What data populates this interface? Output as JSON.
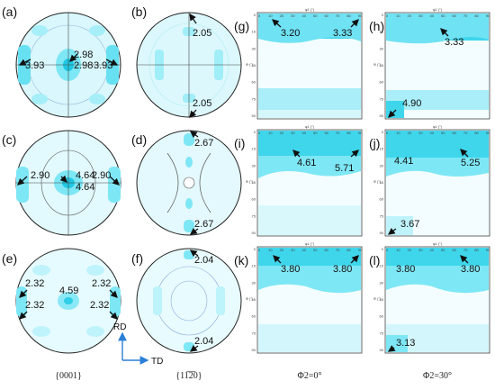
{
  "pole_figures": [
    {
      "label": "(a)",
      "values": [
        "3.93",
        "2.98",
        "2.98",
        "3.93"
      ]
    },
    {
      "label": "(b)",
      "values": [
        "2.05",
        "2.05"
      ]
    },
    {
      "label": "(c)",
      "values": [
        "2.90",
        "4.64",
        "4.64",
        "2.90"
      ]
    },
    {
      "label": "(d)",
      "values": [
        "2.67",
        "2.67"
      ]
    },
    {
      "label": "(e)",
      "values": [
        "2.32",
        "4.59",
        "2.32",
        "2.32",
        "2.32"
      ]
    },
    {
      "label": "(f)",
      "values": [
        "2.04",
        "2.04"
      ]
    }
  ],
  "odf_sections": [
    {
      "label": "(g)",
      "values": [
        "3.20",
        "3.33"
      ]
    },
    {
      "label": "(h)",
      "values": [
        "3.33",
        "4.90"
      ]
    },
    {
      "label": "(i)",
      "values": [
        "4.61",
        "5.71"
      ]
    },
    {
      "label": "(j)",
      "values": [
        "4.41",
        "5.25",
        "3.67"
      ]
    },
    {
      "label": "(k)",
      "values": [
        "3.80",
        "3.80"
      ]
    },
    {
      "label": "(l)",
      "values": [
        "3.80",
        "3.80",
        "3.13"
      ]
    }
  ],
  "axes": {
    "rd": "RD",
    "td": "TD"
  },
  "odf_axis": {
    "x_title": "φ1 (°)",
    "y_title": "Φ (°)",
    "x_ticks": [
      "0",
      "10",
      "20",
      "30",
      "40",
      "50",
      "60",
      "70",
      "80",
      "90"
    ],
    "y_ticks": [
      "0",
      "15",
      "30",
      "45",
      "60",
      "75",
      "90"
    ]
  },
  "captions": {
    "pf1": "{0001}",
    "pf2": "{11̅2̅0}",
    "odf1": "Φ2=0°",
    "odf2": "Φ2=30°"
  },
  "colors": {
    "cyan": "#22d3ee",
    "pale": "#e6fbff",
    "arrow": "#111111",
    "axis_arrow": "#2a7fd6"
  }
}
